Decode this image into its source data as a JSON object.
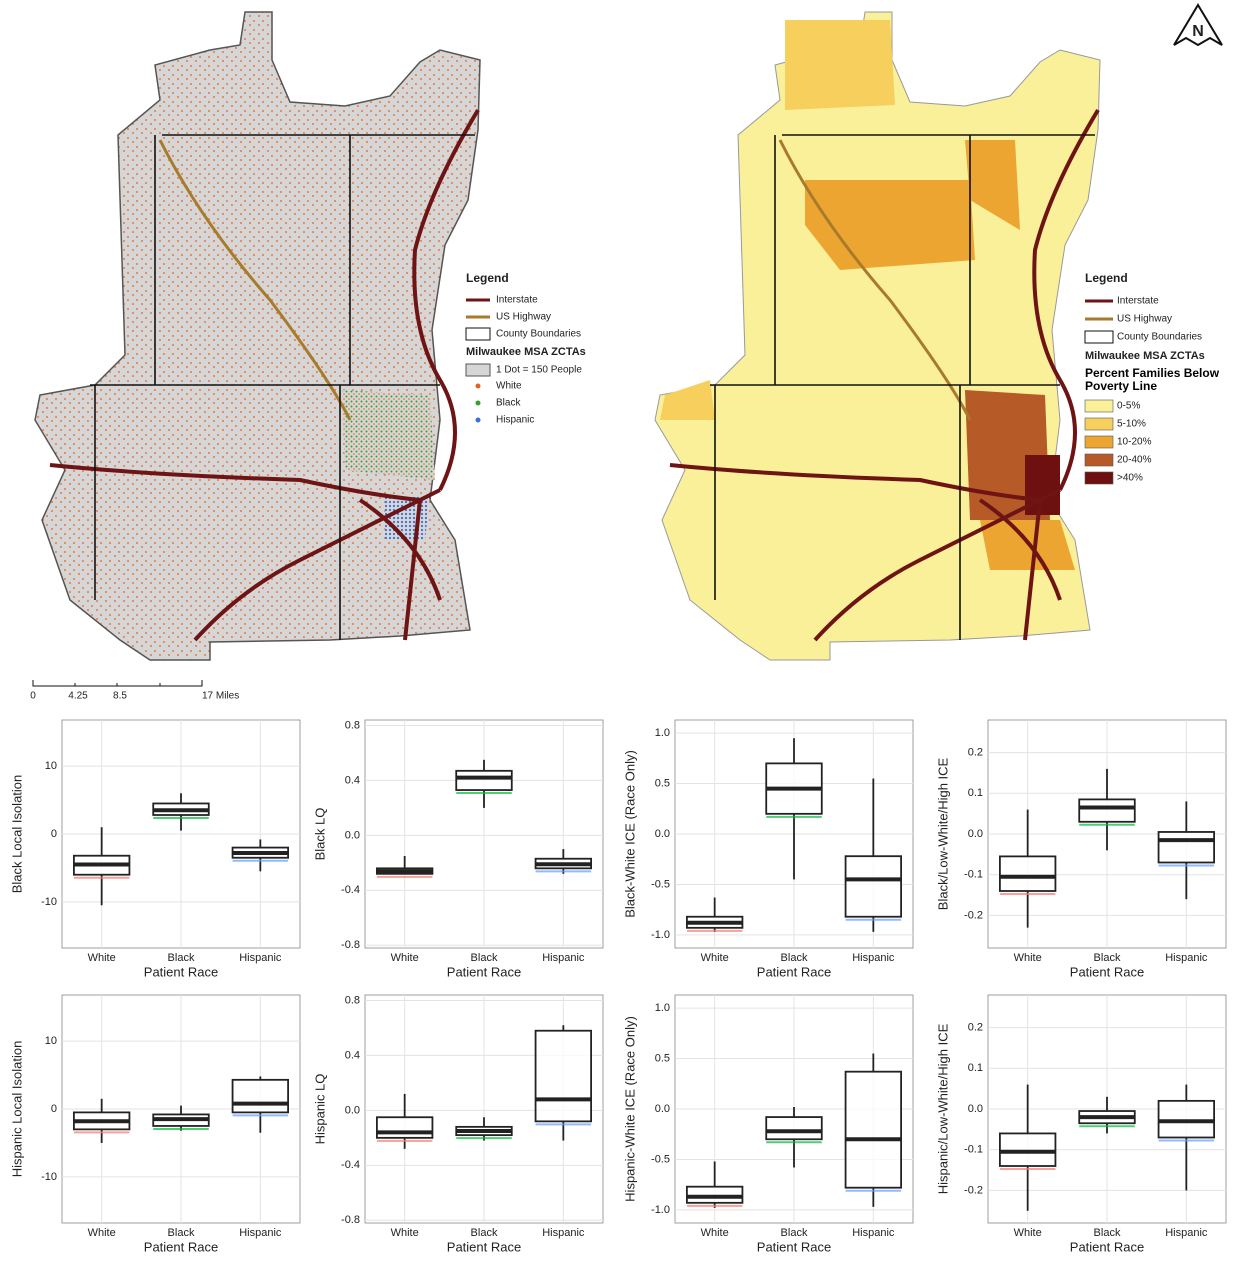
{
  "maps": [
    {
      "legend": {
        "title": "Legend",
        "interstate": "Interstate",
        "us_highway": "US Highway",
        "county": "County Boundaries",
        "zcta": "Milwaukee MSA ZCTAs",
        "dot": "1 Dot = 150 People",
        "groups": [
          {
            "name": "White",
            "color": "#e8601c"
          },
          {
            "name": "Black",
            "color": "#33a02c"
          },
          {
            "name": "Hispanic",
            "color": "#3a6fd8"
          }
        ]
      }
    },
    {
      "legend": {
        "title": "Legend",
        "interstate": "Interstate",
        "us_highway": "US Highway",
        "county": "County Boundaries",
        "zcta": "Milwaukee MSA ZCTAs",
        "class_title": "Percent Families Below Poverty Line",
        "classes": [
          {
            "name": "0-5%",
            "color": "#faf09a"
          },
          {
            "name": "5-10%",
            "color": "#f7cf5c"
          },
          {
            "name": "10-20%",
            "color": "#eda532"
          },
          {
            "name": "20-40%",
            "color": "#b65a28"
          },
          {
            "name": ">40%",
            "color": "#6e1010"
          }
        ]
      }
    }
  ],
  "scale_bar": [
    "0",
    "4.25",
    "8.5",
    "17 Miles"
  ],
  "chart_data": [
    {
      "type": "box",
      "y_label": "Black Local Isolation",
      "x_label": "Patient Race",
      "categories": [
        "White",
        "Black",
        "Hispanic"
      ],
      "colors": [
        "#f8766d",
        "#00ba38",
        "#619cff"
      ],
      "boxes": [
        {
          "min": -10.5,
          "q1": -6,
          "median": -4.5,
          "q3": -3.2,
          "max": 1
        },
        {
          "min": 0.5,
          "q1": 2.8,
          "median": 3.5,
          "q3": 4.5,
          "max": 6
        },
        {
          "min": -5.5,
          "q1": -3.5,
          "median": -2.8,
          "q3": -2,
          "max": -0.8
        }
      ],
      "ylim": [
        -16.8,
        16.8
      ],
      "yticks": [
        -10,
        0,
        10
      ]
    },
    {
      "type": "box",
      "y_label": "Black LQ",
      "x_label": "Patient Race",
      "categories": [
        "White",
        "Black",
        "Hispanic"
      ],
      "colors": [
        "#f8766d",
        "#00ba38",
        "#619cff"
      ],
      "boxes": [
        {
          "min": -0.28,
          "q1": -0.28,
          "median": -0.26,
          "q3": -0.24,
          "max": -0.15
        },
        {
          "min": 0.2,
          "q1": 0.33,
          "median": 0.42,
          "q3": 0.47,
          "max": 0.55
        },
        {
          "min": -0.28,
          "q1": -0.24,
          "median": -0.21,
          "q3": -0.17,
          "max": -0.1
        }
      ],
      "ylim": [
        -0.82,
        0.84
      ],
      "yticks": [
        -0.8,
        -0.4,
        {
          "value": 0,
          "label": "0.0"
        },
        0.4,
        0.8
      ]
    },
    {
      "type": "box",
      "y_label": "Black-White ICE (Race Only)",
      "x_label": "Patient Race",
      "categories": [
        "White",
        "Black",
        "Hispanic"
      ],
      "colors": [
        "#f8766d",
        "#00ba38",
        "#619cff"
      ],
      "boxes": [
        {
          "min": -0.97,
          "q1": -0.93,
          "median": -0.88,
          "q3": -0.82,
          "max": -0.63
        },
        {
          "min": -0.45,
          "q1": 0.2,
          "median": 0.45,
          "q3": 0.7,
          "max": 0.95
        },
        {
          "min": -0.97,
          "q1": -0.82,
          "median": -0.45,
          "q3": -0.22,
          "max": 0.55
        }
      ],
      "ylim": [
        -1.13,
        1.13
      ],
      "yticks": [
        {
          "value": -1,
          "label": "-1.0"
        },
        -0.5,
        {
          "value": 0,
          "label": "0.0"
        },
        0.5,
        {
          "value": 1,
          "label": "1.0"
        }
      ]
    },
    {
      "type": "box",
      "y_label": "Black/Low-White/High ICE",
      "x_label": "Patient Race",
      "categories": [
        "White",
        "Black",
        "Hispanic"
      ],
      "colors": [
        "#f8766d",
        "#00ba38",
        "#619cff"
      ],
      "boxes": [
        {
          "min": -0.23,
          "q1": -0.14,
          "median": -0.105,
          "q3": -0.055,
          "max": 0.06
        },
        {
          "min": -0.04,
          "q1": 0.03,
          "median": 0.065,
          "q3": 0.085,
          "max": 0.16
        },
        {
          "min": -0.16,
          "q1": -0.07,
          "median": -0.015,
          "q3": 0.005,
          "max": 0.08
        }
      ],
      "ylim": [
        -0.28,
        0.28
      ],
      "yticks": [
        -0.2,
        -0.1,
        {
          "value": 0,
          "label": "0.0"
        },
        0.1,
        0.2
      ]
    },
    {
      "type": "box",
      "y_label": "Hispanic Local Isolation",
      "x_label": "Patient Race",
      "categories": [
        "White",
        "Black",
        "Hispanic"
      ],
      "colors": [
        "#f8766d",
        "#00ba38",
        "#619cff"
      ],
      "boxes": [
        {
          "min": -5,
          "q1": -3,
          "median": -1.8,
          "q3": -0.5,
          "max": 1.5
        },
        {
          "min": -3.2,
          "q1": -2.5,
          "median": -1.5,
          "q3": -0.8,
          "max": 0.5
        },
        {
          "min": -3.5,
          "q1": -0.5,
          "median": 0.8,
          "q3": 4.3,
          "max": 4.8
        }
      ],
      "ylim": [
        -16.8,
        16.8
      ],
      "yticks": [
        -10,
        0,
        10
      ]
    },
    {
      "type": "box",
      "y_label": "Hispanic LQ",
      "x_label": "Patient Race",
      "categories": [
        "White",
        "Black",
        "Hispanic"
      ],
      "colors": [
        "#f8766d",
        "#00ba38",
        "#619cff"
      ],
      "boxes": [
        {
          "min": -0.28,
          "q1": -0.2,
          "median": -0.16,
          "q3": -0.05,
          "max": 0.12
        },
        {
          "min": -0.22,
          "q1": -0.18,
          "median": -0.15,
          "q3": -0.12,
          "max": -0.05
        },
        {
          "min": -0.22,
          "q1": -0.08,
          "median": 0.08,
          "q3": 0.58,
          "max": 0.62
        }
      ],
      "ylim": [
        -0.82,
        0.84
      ],
      "yticks": [
        -0.8,
        -0.4,
        {
          "value": 0,
          "label": "0.0"
        },
        0.4,
        0.8
      ]
    },
    {
      "type": "box",
      "y_label": "Hispanic-White ICE (Race Only)",
      "x_label": "Patient Race",
      "categories": [
        "White",
        "Black",
        "Hispanic"
      ],
      "colors": [
        "#f8766d",
        "#00ba38",
        "#619cff"
      ],
      "boxes": [
        {
          "min": -0.98,
          "q1": -0.93,
          "median": -0.87,
          "q3": -0.77,
          "max": -0.52
        },
        {
          "min": -0.58,
          "q1": -0.3,
          "median": -0.22,
          "q3": -0.08,
          "max": 0.02
        },
        {
          "min": -0.97,
          "q1": -0.78,
          "median": -0.3,
          "q3": 0.37,
          "max": 0.55
        }
      ],
      "ylim": [
        -1.13,
        1.13
      ],
      "yticks": [
        {
          "value": -1,
          "label": "-1.0"
        },
        -0.5,
        {
          "value": 0,
          "label": "0.0"
        },
        0.5,
        {
          "value": 1,
          "label": "1.0"
        }
      ]
    },
    {
      "type": "box",
      "y_label": "Hispanic/Low-White/High ICE",
      "x_label": "Patient Race",
      "categories": [
        "White",
        "Black",
        "Hispanic"
      ],
      "colors": [
        "#f8766d",
        "#00ba38",
        "#619cff"
      ],
      "boxes": [
        {
          "min": -0.25,
          "q1": -0.14,
          "median": -0.105,
          "q3": -0.06,
          "max": 0.06
        },
        {
          "min": -0.06,
          "q1": -0.035,
          "median": -0.02,
          "q3": -0.005,
          "max": 0.03
        },
        {
          "min": -0.2,
          "q1": -0.07,
          "median": -0.03,
          "q3": 0.02,
          "max": 0.06
        }
      ],
      "ylim": [
        -0.28,
        0.28
      ],
      "yticks": [
        -0.2,
        -0.1,
        {
          "value": 0,
          "label": "0.0"
        },
        0.1,
        0.2
      ]
    }
  ]
}
